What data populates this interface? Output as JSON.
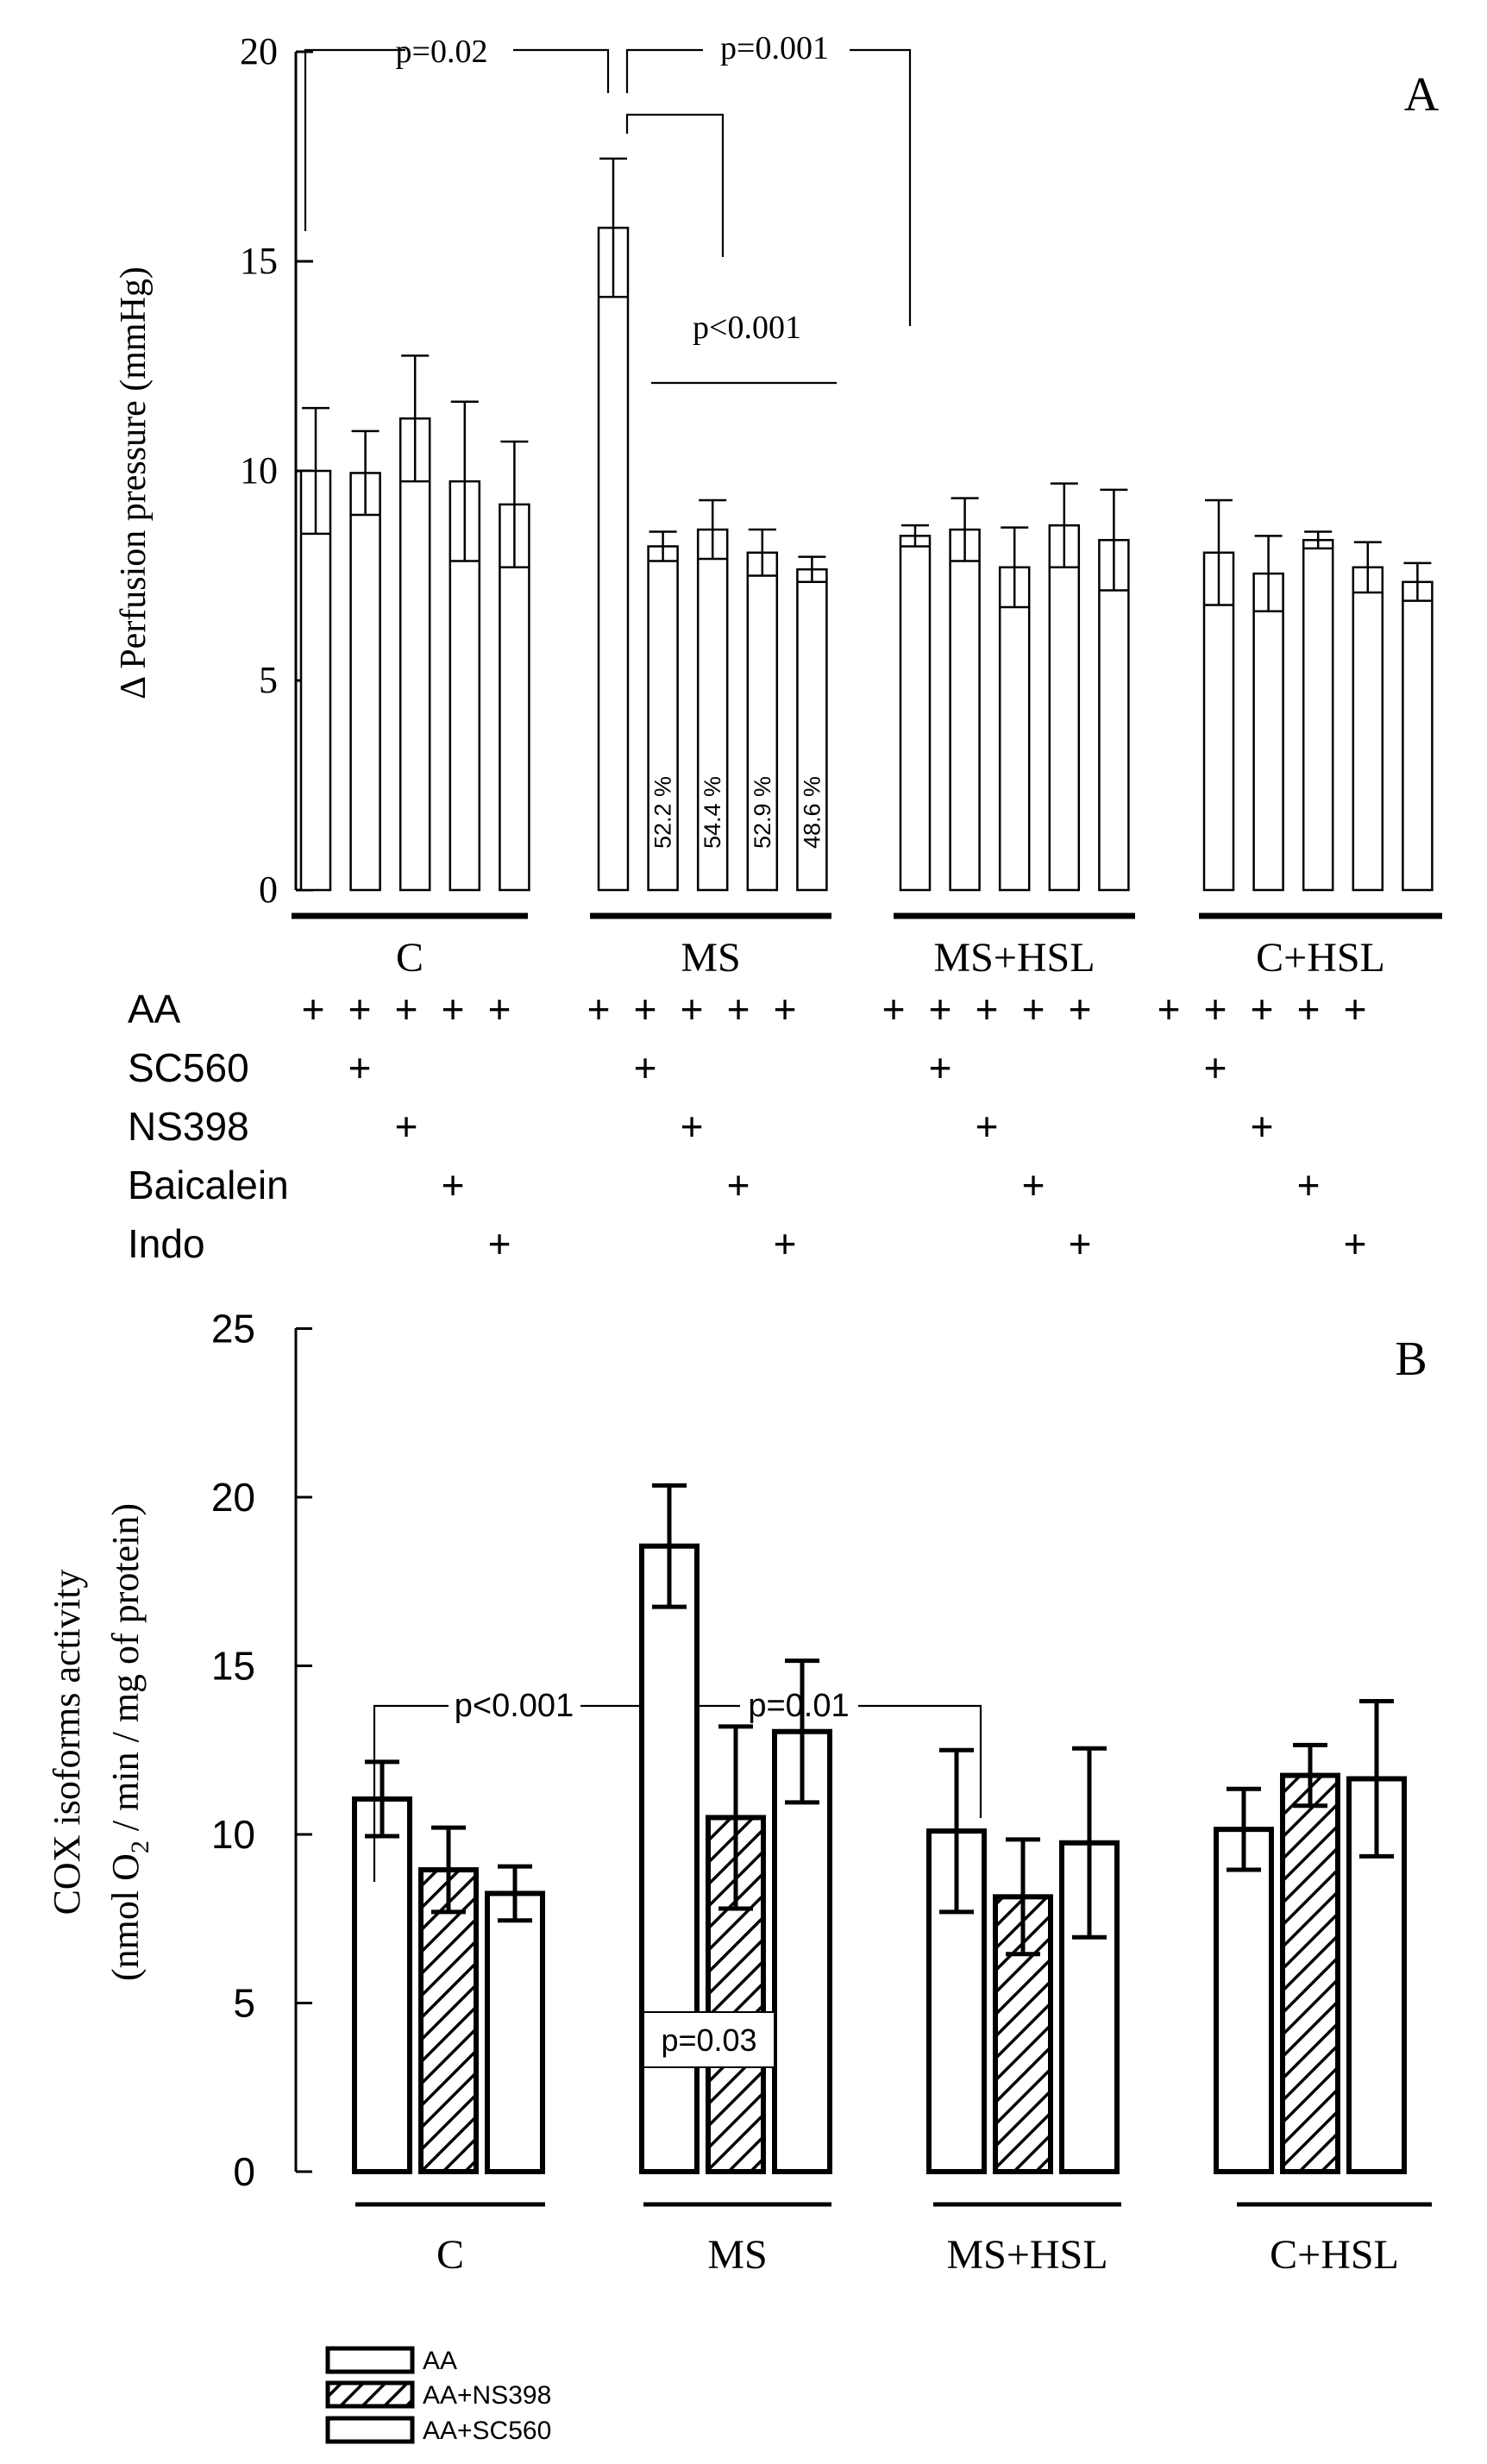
{
  "chart_data": [
    {
      "panel_label": "A",
      "type": "bar",
      "ylabel": "Δ Perfusion pressure (mmHg)",
      "ylim": [
        0,
        20
      ],
      "yticks": [
        0,
        5,
        10,
        15,
        20
      ],
      "groups": [
        "C",
        "MS",
        "MS+HSL",
        "C+HSL"
      ],
      "treatment_rows": [
        {
          "label": "AA",
          "marks": [
            "+",
            "+",
            "+",
            "+",
            "+"
          ]
        },
        {
          "label": "SC560",
          "marks": [
            "",
            "+",
            "",
            "",
            ""
          ]
        },
        {
          "label": "NS398",
          "marks": [
            "",
            "",
            "+",
            "",
            ""
          ]
        },
        {
          "label": "Baicalein",
          "marks": [
            "",
            "",
            "",
            "+",
            ""
          ]
        },
        {
          "label": "Indo",
          "marks": [
            "",
            "",
            "",
            "",
            "+"
          ]
        }
      ],
      "series_per_group": [
        "AA",
        "AA+SC560",
        "AA+NS398",
        "AA+Baicalein",
        "AA+Indo"
      ],
      "bars": [
        {
          "group": "C",
          "values": [
            10.0,
            9.95,
            11.25,
            9.75,
            9.2
          ],
          "errors": [
            1.5,
            1.0,
            1.5,
            1.9,
            1.5
          ],
          "labels": [
            "",
            "",
            "",
            "",
            ""
          ]
        },
        {
          "group": "MS",
          "values": [
            15.8,
            8.2,
            8.6,
            8.05,
            7.65
          ],
          "errors": [
            1.65,
            0.35,
            0.7,
            0.55,
            0.3
          ],
          "labels": [
            "",
            "52.2 %",
            "54.4 %",
            "52.9 %",
            "48.6 %"
          ]
        },
        {
          "group": "MS+HSL",
          "values": [
            8.45,
            8.6,
            7.7,
            8.7,
            8.35
          ],
          "errors": [
            0.25,
            0.75,
            0.95,
            1.0,
            1.2
          ],
          "labels": [
            "",
            "",
            "",
            "",
            ""
          ]
        },
        {
          "group": "C+HSL",
          "values": [
            8.05,
            7.55,
            8.35,
            7.7,
            7.35
          ],
          "errors": [
            1.25,
            0.9,
            0.2,
            0.6,
            0.45
          ],
          "labels": [
            "",
            "",
            "",
            "",
            ""
          ]
        }
      ],
      "annotations": [
        "p=0.02",
        "p=0.001",
        "p<0.001"
      ]
    },
    {
      "panel_label": "B",
      "type": "bar",
      "ylabel_line1": "COX isoforms activity",
      "ylabel_line2_parts": [
        "(nmol O",
        "2",
        " / min / mg of protein)"
      ],
      "ylim": [
        0,
        25
      ],
      "yticks": [
        0,
        5,
        10,
        15,
        20,
        25
      ],
      "groups": [
        "C",
        "MS",
        "MS+HSL",
        "C+HSL"
      ],
      "series": [
        {
          "name": "AA",
          "values": [
            11.05,
            18.55,
            10.1,
            10.15
          ],
          "errors": [
            1.1,
            1.8,
            2.4,
            1.2
          ]
        },
        {
          "name": "AA+NS398",
          "values": [
            8.95,
            10.5,
            8.15,
            11.75
          ],
          "errors": [
            1.25,
            2.7,
            1.7,
            0.9
          ]
        },
        {
          "name": "AA+SC560",
          "values": [
            8.25,
            13.05,
            9.75,
            11.65
          ],
          "errors": [
            0.8,
            2.1,
            2.8,
            2.3
          ]
        }
      ],
      "annotations": [
        "p<0.001",
        "p=0.01",
        "p=0.03"
      ],
      "legend_position": "bottom-left"
    }
  ]
}
